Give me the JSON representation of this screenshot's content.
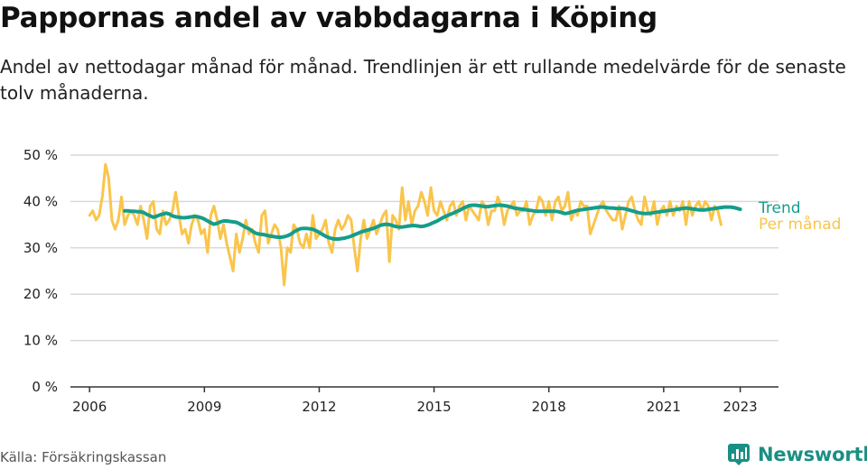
{
  "header": {
    "title": "Pappornas andel av vabbdagarna i Köping",
    "subtitle": "Andel av nettodagar månad för månad. Trendlinjen är ett rullande medelvärde för de senaste tolv månaderna."
  },
  "footer": {
    "source": "Källa: Försäkringskassan",
    "brand": "Newsworthy"
  },
  "colors": {
    "monthly": "#f9c54c",
    "trend": "#159d8b",
    "brand": "#1a8f83",
    "grid": "#d9d9d9",
    "axis": "#333333"
  },
  "chart_data": {
    "type": "line",
    "title": "Pappornas andel av vabbdagarna i Köping",
    "ylim": [
      0,
      50
    ],
    "xlim": [
      2005.5,
      2024.0
    ],
    "y_ticks": [
      {
        "value": 0,
        "label": "0 %"
      },
      {
        "value": 10,
        "label": "10 %"
      },
      {
        "value": 20,
        "label": "20 %"
      },
      {
        "value": 30,
        "label": "30 %"
      },
      {
        "value": 40,
        "label": "40 %"
      },
      {
        "value": 50,
        "label": "50 %"
      }
    ],
    "x_ticks": [
      {
        "value": 2006,
        "label": "2006"
      },
      {
        "value": 2009,
        "label": "2009"
      },
      {
        "value": 2012,
        "label": "2012"
      },
      {
        "value": 2015,
        "label": "2015"
      },
      {
        "value": 2018,
        "label": "2018"
      },
      {
        "value": 2021,
        "label": "2021"
      },
      {
        "value": 2023,
        "label": "2023"
      }
    ],
    "grid": "horizontal",
    "legend_position": "right",
    "series": [
      {
        "name": "Per månad",
        "color": "#f9c54c",
        "start_year": 2006,
        "step": "month",
        "values": [
          37,
          38,
          36,
          37,
          41,
          48,
          45,
          36,
          34,
          36,
          41,
          35,
          37,
          38,
          37,
          35,
          39,
          36,
          32,
          39,
          40,
          34,
          33,
          38,
          35,
          36,
          38,
          42,
          37,
          33,
          34,
          31,
          35,
          37,
          36,
          33,
          34,
          29,
          37,
          39,
          36,
          32,
          35,
          31,
          28,
          25,
          33,
          29,
          32,
          36,
          33,
          34,
          31,
          29,
          37,
          38,
          31,
          33,
          35,
          34,
          30,
          22,
          30,
          29,
          35,
          34,
          31,
          30,
          33,
          30,
          37,
          32,
          33,
          34,
          36,
          31,
          29,
          34,
          36,
          34,
          35,
          37,
          36,
          30,
          25,
          32,
          36,
          32,
          34,
          36,
          33,
          35,
          37,
          38,
          27,
          37,
          36,
          34,
          43,
          36,
          40,
          35,
          38,
          39,
          42,
          40,
          37,
          43,
          38,
          37,
          40,
          38,
          36,
          39,
          40,
          37,
          39,
          40,
          36,
          39,
          38,
          37,
          36,
          40,
          39,
          35,
          38,
          38,
          41,
          39,
          35,
          38,
          39,
          40,
          37,
          38,
          38,
          40,
          35,
          37,
          38,
          41,
          40,
          37,
          40,
          36,
          40,
          41,
          38,
          39,
          42,
          36,
          38,
          37,
          40,
          39,
          39,
          33,
          35,
          37,
          39,
          40,
          38,
          37,
          36,
          36,
          39,
          34,
          37,
          40,
          41,
          38,
          36,
          35,
          41,
          38,
          37,
          40,
          35,
          38,
          39,
          37,
          40,
          37,
          39,
          38,
          40,
          35,
          40,
          37,
          39,
          40,
          38,
          40,
          39,
          36,
          39,
          38,
          35
        ]
      },
      {
        "name": "Trend",
        "color": "#159d8b",
        "start_year": 2006.917,
        "step": "month",
        "values": [
          38.0,
          38.0,
          37.9,
          37.9,
          37.8,
          37.8,
          37.6,
          37.2,
          36.9,
          36.6,
          36.8,
          37.1,
          37.3,
          37.5,
          37.3,
          36.9,
          36.7,
          36.6,
          36.5,
          36.5,
          36.6,
          36.7,
          36.8,
          36.7,
          36.5,
          36.2,
          35.8,
          35.4,
          35.1,
          35.3,
          35.6,
          35.8,
          35.8,
          35.7,
          35.6,
          35.5,
          35.2,
          34.8,
          34.4,
          34.1,
          33.6,
          33.2,
          33.0,
          32.9,
          32.8,
          32.6,
          32.5,
          32.4,
          32.3,
          32.3,
          32.4,
          32.6,
          32.9,
          33.4,
          33.8,
          34.1,
          34.2,
          34.2,
          34.1,
          34.0,
          33.7,
          33.3,
          32.9,
          32.5,
          32.2,
          32.0,
          31.9,
          31.9,
          32.0,
          32.1,
          32.3,
          32.5,
          32.8,
          33.1,
          33.4,
          33.6,
          33.8,
          34.0,
          34.2,
          34.5,
          34.8,
          35.0,
          35.1,
          35.0,
          34.8,
          34.6,
          34.5,
          34.5,
          34.6,
          34.7,
          34.8,
          34.8,
          34.7,
          34.6,
          34.7,
          34.9,
          35.2,
          35.5,
          35.8,
          36.2,
          36.6,
          36.9,
          37.2,
          37.5,
          37.8,
          38.1,
          38.5,
          38.8,
          39.1,
          39.2,
          39.2,
          39.1,
          39.0,
          38.9,
          38.9,
          39.0,
          39.1,
          39.2,
          39.2,
          39.1,
          39.0,
          38.8,
          38.6,
          38.5,
          38.4,
          38.3,
          38.2,
          38.1,
          38.0,
          37.9,
          37.9,
          37.9,
          37.9,
          37.9,
          37.9,
          37.9,
          37.8,
          37.6,
          37.4,
          37.5,
          37.7,
          37.9,
          38.1,
          38.2,
          38.3,
          38.4,
          38.5,
          38.6,
          38.7,
          38.8,
          38.8,
          38.7,
          38.6,
          38.6,
          38.5,
          38.5,
          38.5,
          38.4,
          38.2,
          38.0,
          37.8,
          37.6,
          37.5,
          37.4,
          37.4,
          37.5,
          37.6,
          37.7,
          37.8,
          37.9,
          38.0,
          38.1,
          38.2,
          38.3,
          38.4,
          38.5,
          38.6,
          38.5,
          38.4,
          38.3,
          38.2,
          38.2,
          38.2,
          38.3,
          38.4,
          38.5,
          38.6,
          38.7,
          38.8,
          38.8,
          38.8,
          38.7,
          38.5,
          38.3
        ]
      }
    ]
  }
}
